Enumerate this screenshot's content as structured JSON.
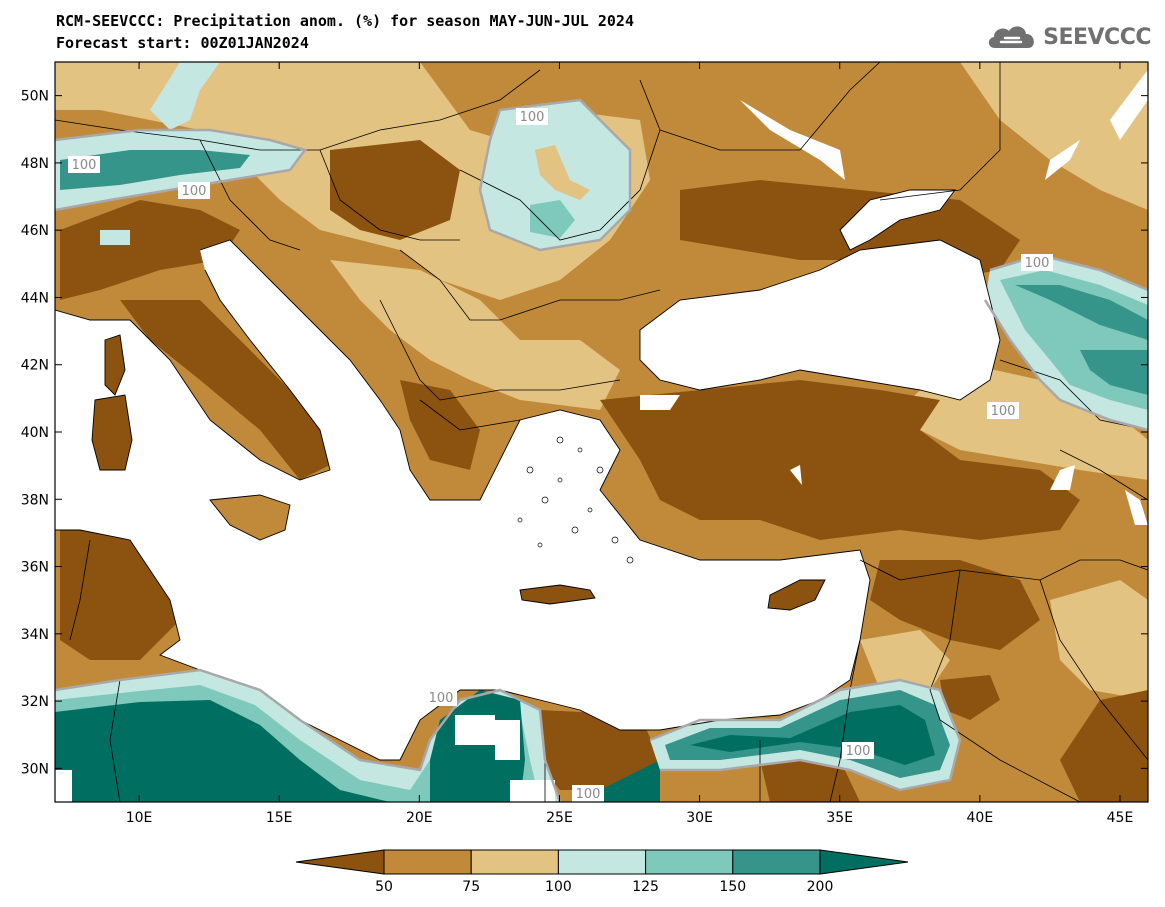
{
  "header": {
    "title_line1": "RCM-SEEVCCC: Precipitation anom. (%) for season MAY-JUN-JUL 2024",
    "title_line2": "Forecast start: 00Z01JAN2024"
  },
  "logo": {
    "text": "SEEVCCC",
    "icon": "cloud-icon"
  },
  "map": {
    "lon_range": [
      7,
      46
    ],
    "lat_range": [
      29,
      51
    ],
    "lon_ticks": [
      "10E",
      "15E",
      "20E",
      "25E",
      "30E",
      "35E",
      "40E",
      "45E"
    ],
    "lat_ticks": [
      "30N",
      "32N",
      "34N",
      "36N",
      "38N",
      "40N",
      "42N",
      "44N",
      "46N",
      "48N",
      "50N"
    ],
    "contour_labels": [
      "100",
      "100",
      "100",
      "100",
      "100",
      "100",
      "100",
      "100"
    ]
  },
  "colorbar": {
    "labels": [
      "50",
      "75",
      "100",
      "125",
      "150",
      "200"
    ],
    "colors": [
      "#8c5210",
      "#c08a3a",
      "#e3c382",
      "#c4e7e2",
      "#7ec9bb",
      "#35958b",
      "#006f62"
    ]
  },
  "palette": {
    "dry_strong": "#8c5210",
    "dry": "#c08a3a",
    "dry_light": "#e3c382",
    "wet_light": "#c4e7e2",
    "wet": "#7ec9bb",
    "wet_strong": "#35958b",
    "wet_extreme": "#006f62",
    "sea": "#ffffff"
  }
}
